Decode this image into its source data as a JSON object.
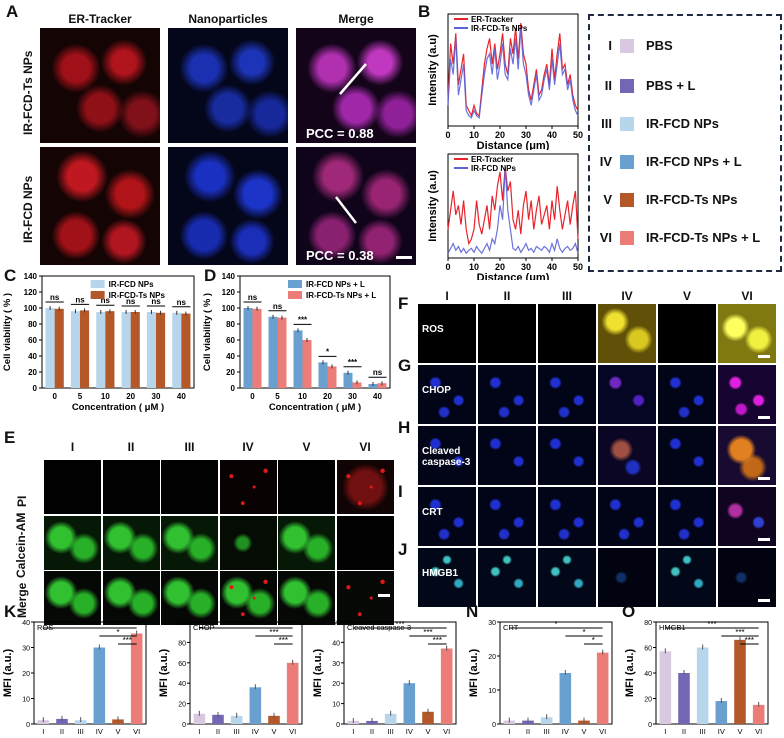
{
  "panel_letters": [
    "A",
    "B",
    "C",
    "D",
    "E",
    "F",
    "G",
    "H",
    "I",
    "J",
    "K",
    "L",
    "M",
    "N",
    "O"
  ],
  "panelA": {
    "columns": [
      "ER-Tracker",
      "Nanoparticles",
      "Merge"
    ],
    "rows": [
      "IR-FCD-Ts NPs",
      "IR-FCD NPs"
    ],
    "pcc": [
      "PCC = 0.88",
      "PCC = 0.38"
    ]
  },
  "panelE": {
    "roman": [
      "I",
      "II",
      "III",
      "IV",
      "V",
      "VI"
    ],
    "rows": [
      "PI",
      "Calcein-AM",
      "Merge"
    ]
  },
  "panelF": {
    "roman": [
      "I",
      "II",
      "III",
      "IV",
      "V",
      "VI"
    ],
    "row_letters": [
      "F",
      "G",
      "H",
      "I",
      "J"
    ],
    "row_labels": [
      "ROS",
      "CHOP",
      "Cleaved caspase-3",
      "CRT",
      "HMGB1"
    ]
  },
  "legend": {
    "items": [
      {
        "roman": "I",
        "label": "PBS",
        "color": "#d8c8e0"
      },
      {
        "roman": "II",
        "label": "PBS + L",
        "color": "#7466b4"
      },
      {
        "roman": "III",
        "label": "IR-FCD NPs",
        "color": "#b7d6ec"
      },
      {
        "roman": "IV",
        "label": "IR-FCD NPs + L",
        "color": "#6aa0d0"
      },
      {
        "roman": "V",
        "label": "IR-FCD-Ts NPs",
        "color": "#b4582a"
      },
      {
        "roman": "VI",
        "label": "IR-FCD-Ts NPs + L",
        "color": "#ec7c78"
      }
    ]
  },
  "chart_data": [
    {
      "panel": "B-top",
      "type": "line",
      "xlabel": "Distance (μm)",
      "ylabel": "Intensity (a.u)",
      "xticks": [
        0,
        10,
        20,
        30,
        40,
        50
      ],
      "xlim": [
        0,
        50
      ],
      "series": [
        {
          "name": "ER-Tracker",
          "color": "#e8232b",
          "x": [
            0,
            1,
            2,
            3,
            4,
            5,
            6,
            7,
            8,
            9,
            10,
            11,
            12,
            13,
            14,
            15,
            16,
            17,
            18,
            19,
            20,
            21,
            22,
            23,
            24,
            25,
            26,
            27,
            28,
            29,
            30,
            31,
            32,
            33,
            34,
            35,
            36,
            37,
            38,
            39,
            40,
            41,
            42,
            43,
            44,
            45,
            46,
            47,
            48,
            49,
            50
          ],
          "y": [
            0.25,
            0.8,
            0.6,
            0.9,
            0.4,
            0.55,
            0.7,
            0.2,
            0.15,
            0.1,
            0.2,
            0.12,
            0.1,
            0.35,
            0.6,
            0.75,
            0.85,
            0.6,
            0.8,
            0.55,
            0.7,
            0.9,
            0.6,
            0.5,
            0.85,
            0.7,
            0.95,
            0.65,
            1.0,
            0.7,
            0.6,
            0.35,
            0.25,
            0.4,
            0.55,
            0.3,
            0.35,
            0.5,
            0.6,
            0.4,
            0.75,
            0.45,
            0.7,
            0.9,
            0.55,
            0.6,
            0.4,
            0.5,
            0.3,
            0.2,
            0.15
          ]
        },
        {
          "name": "IR-FCD-Ts NPs",
          "color": "#5a63d8",
          "x": [
            0,
            1,
            2,
            3,
            4,
            5,
            6,
            7,
            8,
            9,
            10,
            11,
            12,
            13,
            14,
            15,
            16,
            17,
            18,
            19,
            20,
            21,
            22,
            23,
            24,
            25,
            26,
            27,
            28,
            29,
            30,
            31,
            32,
            33,
            34,
            35,
            36,
            37,
            38,
            39,
            40,
            41,
            42,
            43,
            44,
            45,
            46,
            47,
            48,
            49,
            50
          ],
          "y": [
            0.2,
            0.65,
            0.5,
            0.85,
            0.3,
            0.45,
            0.6,
            0.15,
            0.1,
            0.08,
            0.15,
            0.1,
            0.08,
            0.3,
            0.5,
            0.65,
            0.7,
            0.5,
            0.75,
            0.45,
            0.6,
            0.8,
            0.5,
            0.45,
            0.75,
            0.6,
            0.85,
            0.55,
            0.95,
            0.6,
            0.5,
            0.3,
            0.2,
            0.35,
            0.5,
            0.25,
            0.3,
            0.45,
            0.55,
            0.35,
            0.65,
            0.4,
            0.6,
            0.8,
            0.5,
            0.55,
            0.35,
            0.45,
            0.25,
            0.15,
            0.1
          ]
        }
      ]
    },
    {
      "panel": "B-bottom",
      "type": "line",
      "xlabel": "Distance (μm)",
      "ylabel": "Intensity (a.u)",
      "xticks": [
        0,
        10,
        20,
        30,
        40,
        50
      ],
      "xlim": [
        0,
        50
      ],
      "series": [
        {
          "name": "ER-Tracker",
          "color": "#e8232b",
          "x": [
            0,
            1,
            2,
            3,
            4,
            5,
            6,
            7,
            8,
            9,
            10,
            11,
            12,
            13,
            14,
            15,
            16,
            17,
            18,
            19,
            20,
            21,
            22,
            23,
            24,
            25,
            26,
            27,
            28,
            29,
            30,
            31,
            32,
            33,
            34,
            35,
            36,
            37,
            38,
            39,
            40,
            41,
            42,
            43,
            44,
            45,
            46,
            47,
            48,
            49,
            50
          ],
          "y": [
            0.3,
            0.5,
            0.7,
            0.45,
            0.55,
            0.35,
            0.6,
            0.3,
            0.15,
            0.2,
            0.3,
            0.6,
            0.35,
            0.25,
            0.4,
            0.55,
            0.3,
            0.65,
            0.5,
            0.75,
            0.9,
            0.6,
            0.95,
            0.7,
            0.8,
            0.4,
            0.3,
            0.5,
            0.25,
            0.55,
            0.7,
            0.4,
            0.6,
            0.3,
            0.5,
            0.65,
            0.35,
            0.45,
            0.55,
            0.3,
            0.6,
            0.4,
            0.75,
            0.5,
            0.3,
            0.45,
            0.6,
            0.35,
            0.55,
            0.7,
            0.2
          ]
        },
        {
          "name": "IR-FCD NPs",
          "color": "#5a63d8",
          "x": [
            0,
            1,
            2,
            3,
            4,
            5,
            6,
            7,
            8,
            9,
            10,
            11,
            12,
            13,
            14,
            15,
            16,
            17,
            18,
            19,
            20,
            21,
            22,
            23,
            24,
            25,
            26,
            27,
            28,
            29,
            30,
            31,
            32,
            33,
            34,
            35,
            36,
            37,
            38,
            39,
            40,
            41,
            42,
            43,
            44,
            45,
            46,
            47,
            48,
            49,
            50
          ],
          "y": [
            0.05,
            0.1,
            0.15,
            0.08,
            0.12,
            0.06,
            0.1,
            0.05,
            0.08,
            0.1,
            0.06,
            0.12,
            0.08,
            0.05,
            0.1,
            0.15,
            0.08,
            0.2,
            0.15,
            0.3,
            0.55,
            0.4,
            0.95,
            0.5,
            0.3,
            0.1,
            0.08,
            0.12,
            0.06,
            0.1,
            0.15,
            0.08,
            0.1,
            0.06,
            0.12,
            0.1,
            0.08,
            0.12,
            0.1,
            0.06,
            0.15,
            0.08,
            0.2,
            0.1,
            0.06,
            0.1,
            0.12,
            0.08,
            0.1,
            0.15,
            0.05
          ]
        }
      ]
    },
    {
      "panel": "C",
      "type": "bar",
      "categories": [
        "0",
        "5",
        "10",
        "20",
        "30",
        "40"
      ],
      "xlabel": "Concentration ( μM )",
      "ylabel": "Cell viability ( % )",
      "ylim": [
        0,
        140
      ],
      "yticks": [
        0,
        20,
        40,
        60,
        80,
        100,
        120,
        140
      ],
      "series": [
        {
          "name": "IR-FCD NPs",
          "color": "#b7d6ec",
          "values": [
            100,
            96,
            95,
            95,
            95,
            94
          ]
        },
        {
          "name": "IR-FCD-Ts NPs",
          "color": "#b4582a",
          "values": [
            99,
            97,
            96,
            95,
            94,
            93
          ]
        }
      ],
      "sig": [
        "ns",
        "ns",
        "ns",
        "ns",
        "ns",
        "ns"
      ]
    },
    {
      "panel": "D",
      "type": "bar",
      "categories": [
        "0",
        "5",
        "10",
        "20",
        "30",
        "40"
      ],
      "xlabel": "Concentration ( μM )",
      "ylabel": "Cell viability ( % )",
      "ylim": [
        0,
        140
      ],
      "yticks": [
        0,
        20,
        40,
        60,
        80,
        100,
        120,
        140
      ],
      "series": [
        {
          "name": "IR-FCD NPs + L",
          "color": "#6aa0d0",
          "values": [
            100,
            89,
            72,
            32,
            19,
            5
          ]
        },
        {
          "name": "IR-FCD-Ts NPs + L",
          "color": "#ec7c78",
          "values": [
            99,
            88,
            60,
            27,
            7,
            6
          ]
        }
      ],
      "sig": [
        "ns",
        "ns",
        "***",
        "*",
        "***",
        "ns"
      ]
    },
    {
      "panel": "K",
      "type": "bar",
      "title": "ROS",
      "ylabel": "MFI (a.u.)",
      "ylim": [
        0,
        40
      ],
      "yticks": [
        0,
        10,
        20,
        30,
        40
      ],
      "categories": [
        "I",
        "II",
        "III",
        "IV",
        "V",
        "VI"
      ],
      "values": [
        1.5,
        2,
        1.5,
        30,
        1.8,
        35.5
      ],
      "brackets": [
        {
          "from": 0,
          "to": 5,
          "label": "***"
        },
        {
          "from": 3,
          "to": 5,
          "label": "*"
        },
        {
          "from": 4,
          "to": 5,
          "label": "***"
        }
      ]
    },
    {
      "panel": "L",
      "type": "bar",
      "title": "CHOP",
      "ylabel": "MFI (a.u.)",
      "ylim": [
        0,
        100
      ],
      "yticks": [
        0,
        20,
        40,
        60,
        80,
        100
      ],
      "categories": [
        "I",
        "II",
        "III",
        "IV",
        "V",
        "VI"
      ],
      "values": [
        10,
        9,
        8,
        36,
        8,
        60
      ],
      "brackets": [
        {
          "from": 0,
          "to": 5,
          "label": "***"
        },
        {
          "from": 3,
          "to": 5,
          "label": "***"
        },
        {
          "from": 4,
          "to": 5,
          "label": "***"
        }
      ]
    },
    {
      "panel": "M",
      "type": "bar",
      "title": "Cleaved caspase-3",
      "ylabel": "MFI (a.u.)",
      "ylim": [
        0,
        50
      ],
      "yticks": [
        0,
        10,
        20,
        30,
        40,
        50
      ],
      "categories": [
        "I",
        "II",
        "III",
        "IV",
        "V",
        "VI"
      ],
      "values": [
        1.5,
        1.5,
        5,
        20,
        6,
        37
      ],
      "brackets": [
        {
          "from": 0,
          "to": 5,
          "label": "***"
        },
        {
          "from": 3,
          "to": 5,
          "label": "***"
        },
        {
          "from": 4,
          "to": 5,
          "label": "***"
        }
      ]
    },
    {
      "panel": "N",
      "type": "bar",
      "title": "CRT",
      "ylabel": "MFI (a.u.)",
      "ylim": [
        0,
        30
      ],
      "yticks": [
        0,
        10,
        20,
        30
      ],
      "categories": [
        "I",
        "II",
        "III",
        "IV",
        "V",
        "VI"
      ],
      "values": [
        1,
        1,
        2,
        15,
        1,
        21
      ],
      "brackets": [
        {
          "from": 0,
          "to": 5,
          "label": "*"
        },
        {
          "from": 3,
          "to": 5,
          "label": "*"
        },
        {
          "from": 4,
          "to": 5,
          "label": "*"
        }
      ]
    },
    {
      "panel": "O",
      "type": "bar",
      "title": "HMGB1",
      "ylabel": "MFI (a.u.)",
      "ylim": [
        0,
        80
      ],
      "yticks": [
        0,
        20,
        40,
        60,
        80
      ],
      "categories": [
        "I",
        "II",
        "III",
        "IV",
        "V",
        "VI"
      ],
      "values": [
        57,
        40,
        60,
        18,
        66,
        15
      ],
      "brackets": [
        {
          "from": 0,
          "to": 5,
          "label": "***"
        },
        {
          "from": 3,
          "to": 5,
          "label": "***"
        },
        {
          "from": 4,
          "to": 5,
          "label": "***"
        }
      ]
    }
  ]
}
